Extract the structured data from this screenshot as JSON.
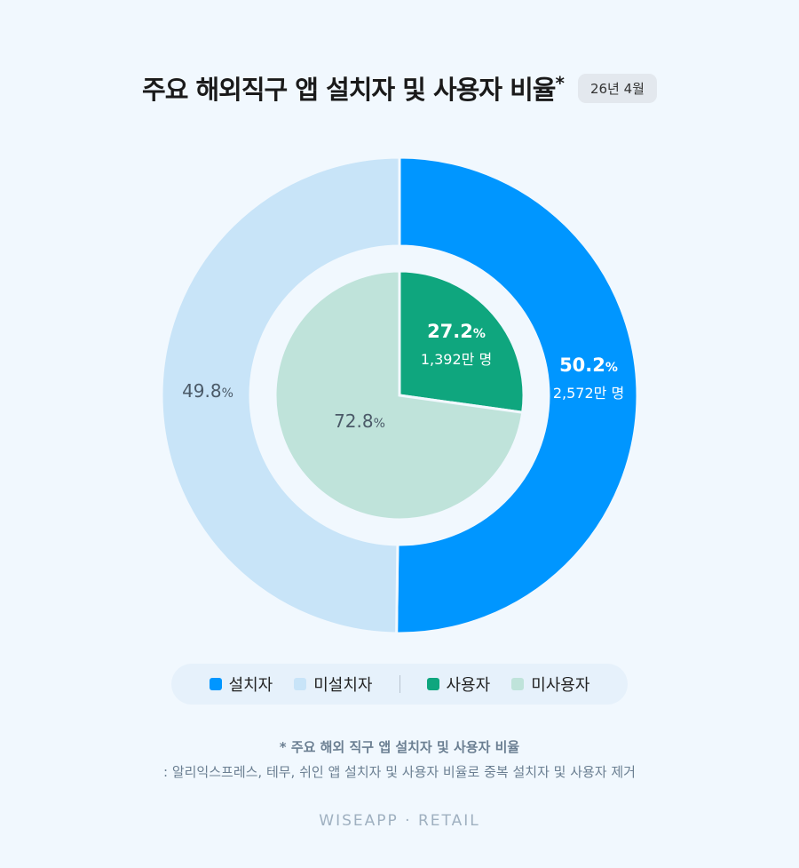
{
  "title": "주요 해외직구 앱 설치자 및 사용자 비율",
  "title_mark": "*",
  "period": "26년 4월",
  "chart_data": [
    {
      "type": "pie",
      "ring": "outer",
      "slices": [
        {
          "name": "설치자",
          "value": 50.2,
          "label": "50.2",
          "unit": "%",
          "count": "2,572만 명",
          "color": "#0096ff"
        },
        {
          "name": "미설치자",
          "value": 49.8,
          "label": "49.8",
          "unit": "%",
          "count": "",
          "color": "#c8e4f8"
        }
      ]
    },
    {
      "type": "pie",
      "ring": "inner",
      "slices": [
        {
          "name": "사용자",
          "value": 27.2,
          "label": "27.2",
          "unit": "%",
          "count": "1,392만 명",
          "color": "#0fa67e"
        },
        {
          "name": "미사용자",
          "value": 72.8,
          "label": "72.8",
          "unit": "%",
          "count": "",
          "color": "#bfe3da"
        }
      ]
    }
  ],
  "legend": {
    "group1": [
      {
        "label": "설치자",
        "color": "#0096ff"
      },
      {
        "label": "미설치자",
        "color": "#c8e4f8"
      }
    ],
    "group2": [
      {
        "label": "사용자",
        "color": "#0fa67e"
      },
      {
        "label": "미사용자",
        "color": "#bfe3da"
      }
    ]
  },
  "footnotes": {
    "line1": "* 주요 해외 직구 앱 설치자 및 사용자 비율",
    "line2": ": 알리익스프레스, 테무, 쉬인 앱 설치자 및 사용자 비율로 중복 설치자 및 사용자 제거"
  },
  "brand": "WISEAPP · RETAIL"
}
